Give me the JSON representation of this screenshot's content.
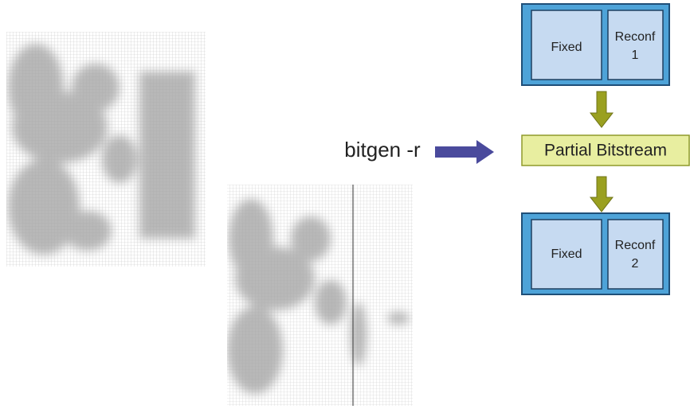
{
  "command": "bitgen -r",
  "top_block": {
    "fixed": "Fixed",
    "reconf": [
      "Reconf",
      "1"
    ]
  },
  "bitstream": "Partial Bitstream",
  "bottom_block": {
    "fixed": "Fixed",
    "reconf": [
      "Reconf",
      "2"
    ]
  }
}
